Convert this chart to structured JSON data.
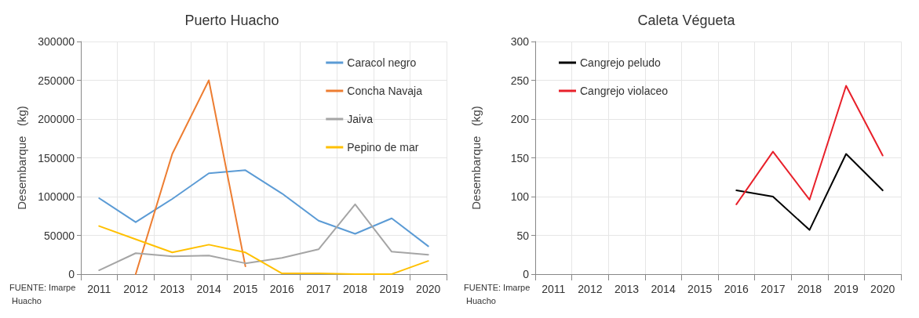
{
  "chart_data": [
    {
      "type": "line",
      "title": "Puerto Huacho",
      "ylabel": "Desembarque   (kg)",
      "annotations": [
        "FUENTE: Imarpe Huacho"
      ],
      "categories": [
        "2011",
        "2012",
        "2013",
        "2014",
        "2015",
        "2016",
        "2017",
        "2018",
        "2019",
        "2020"
      ],
      "series": [
        {
          "name": "Caracol negro",
          "color": "#5b9bd5",
          "values": [
            98000,
            67000,
            97000,
            130000,
            134000,
            104000,
            69000,
            52000,
            72000,
            36000
          ]
        },
        {
          "name": "Concha Navaja",
          "color": "#ed7d31",
          "values": [
            null,
            0,
            155000,
            250000,
            10000,
            null,
            null,
            null,
            null,
            null
          ]
        },
        {
          "name": "Jaiva",
          "color": "#a5a5a5",
          "values": [
            5000,
            27000,
            23000,
            24000,
            14000,
            21000,
            32000,
            90000,
            29000,
            25000
          ]
        },
        {
          "name": "Pepino de mar",
          "color": "#ffc000",
          "values": [
            62000,
            45000,
            28000,
            38000,
            28000,
            1000,
            1000,
            0,
            0,
            17000
          ]
        }
      ],
      "ylim": [
        0,
        300000
      ],
      "yticks": [
        0,
        50000,
        100000,
        150000,
        200000,
        250000,
        300000
      ],
      "grid": true,
      "legend": "top right",
      "marker": "none",
      "line_style": "solid"
    },
    {
      "type": "line",
      "title": "Caleta Végueta",
      "ylabel": "Desembarque   (kg)",
      "annotations": [
        "FUENTE: Imarpe Huacho"
      ],
      "categories": [
        "2011",
        "2012",
        "2013",
        "2014",
        "2015",
        "2016",
        "2017",
        "2018",
        "2019",
        "2020"
      ],
      "series": [
        {
          "name": "Cangrejo peludo",
          "color": "#000000",
          "values": [
            null,
            null,
            null,
            null,
            null,
            108,
            100,
            57,
            155,
            108
          ]
        },
        {
          "name": "Cangrejo violaceo",
          "color": "#e8202a",
          "values": [
            null,
            null,
            null,
            null,
            null,
            90,
            158,
            96,
            243,
            153
          ]
        }
      ],
      "ylim": [
        0,
        300
      ],
      "yticks": [
        0,
        50,
        100,
        150,
        200,
        250,
        300
      ],
      "grid": true,
      "legend": "top left",
      "marker": "none",
      "line_style": "solid"
    }
  ]
}
